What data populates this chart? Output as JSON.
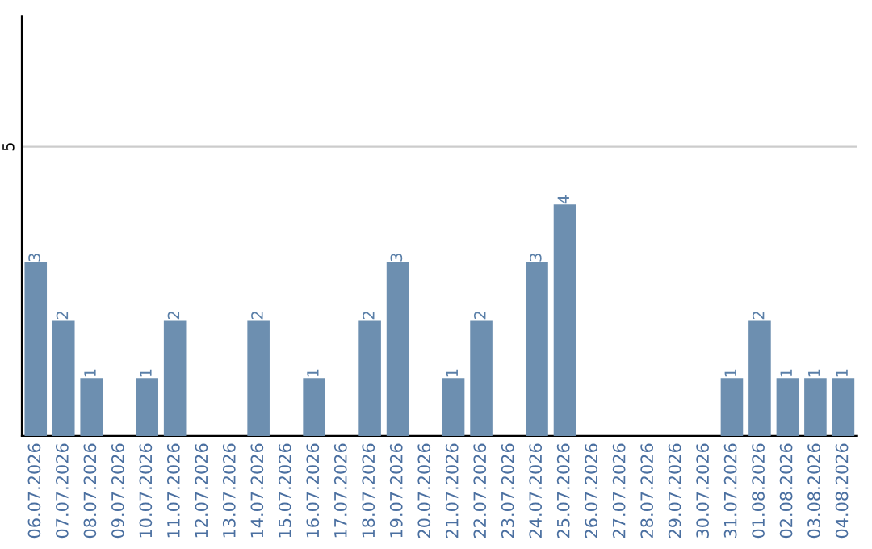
{
  "chart_data": {
    "type": "bar",
    "categories": [
      "06.07.2026",
      "07.07.2026",
      "08.07.2026",
      "09.07.2026",
      "10.07.2026",
      "11.07.2026",
      "12.07.2026",
      "13.07.2026",
      "14.07.2026",
      "15.07.2026",
      "16.07.2026",
      "17.07.2026",
      "18.07.2026",
      "19.07.2026",
      "20.07.2026",
      "21.07.2026",
      "22.07.2026",
      "23.07.2026",
      "24.07.2026",
      "25.07.2026",
      "26.07.2026",
      "27.07.2026",
      "28.07.2026",
      "29.07.2026",
      "30.07.2026",
      "31.07.2026",
      "01.08.2026",
      "02.08.2026",
      "03.08.2026",
      "04.08.2026"
    ],
    "values": [
      3,
      2,
      1,
      0,
      1,
      2,
      0,
      0,
      2,
      0,
      1,
      0,
      2,
      3,
      0,
      1,
      2,
      0,
      3,
      4,
      0,
      0,
      0,
      0,
      0,
      1,
      2,
      1,
      1,
      1
    ],
    "value_labels": [
      "3",
      "2",
      "1",
      null,
      "1",
      "2",
      null,
      null,
      "2",
      null,
      "1",
      null,
      "2",
      "3",
      null,
      "1",
      "2",
      null,
      "3",
      "4",
      null,
      null,
      null,
      null,
      null,
      "1",
      "2",
      "1",
      "1",
      "1"
    ],
    "color": "#6d8fb0",
    "ylim": [
      0,
      7.25
    ],
    "yticks": [
      5
    ],
    "grid": "y"
  }
}
